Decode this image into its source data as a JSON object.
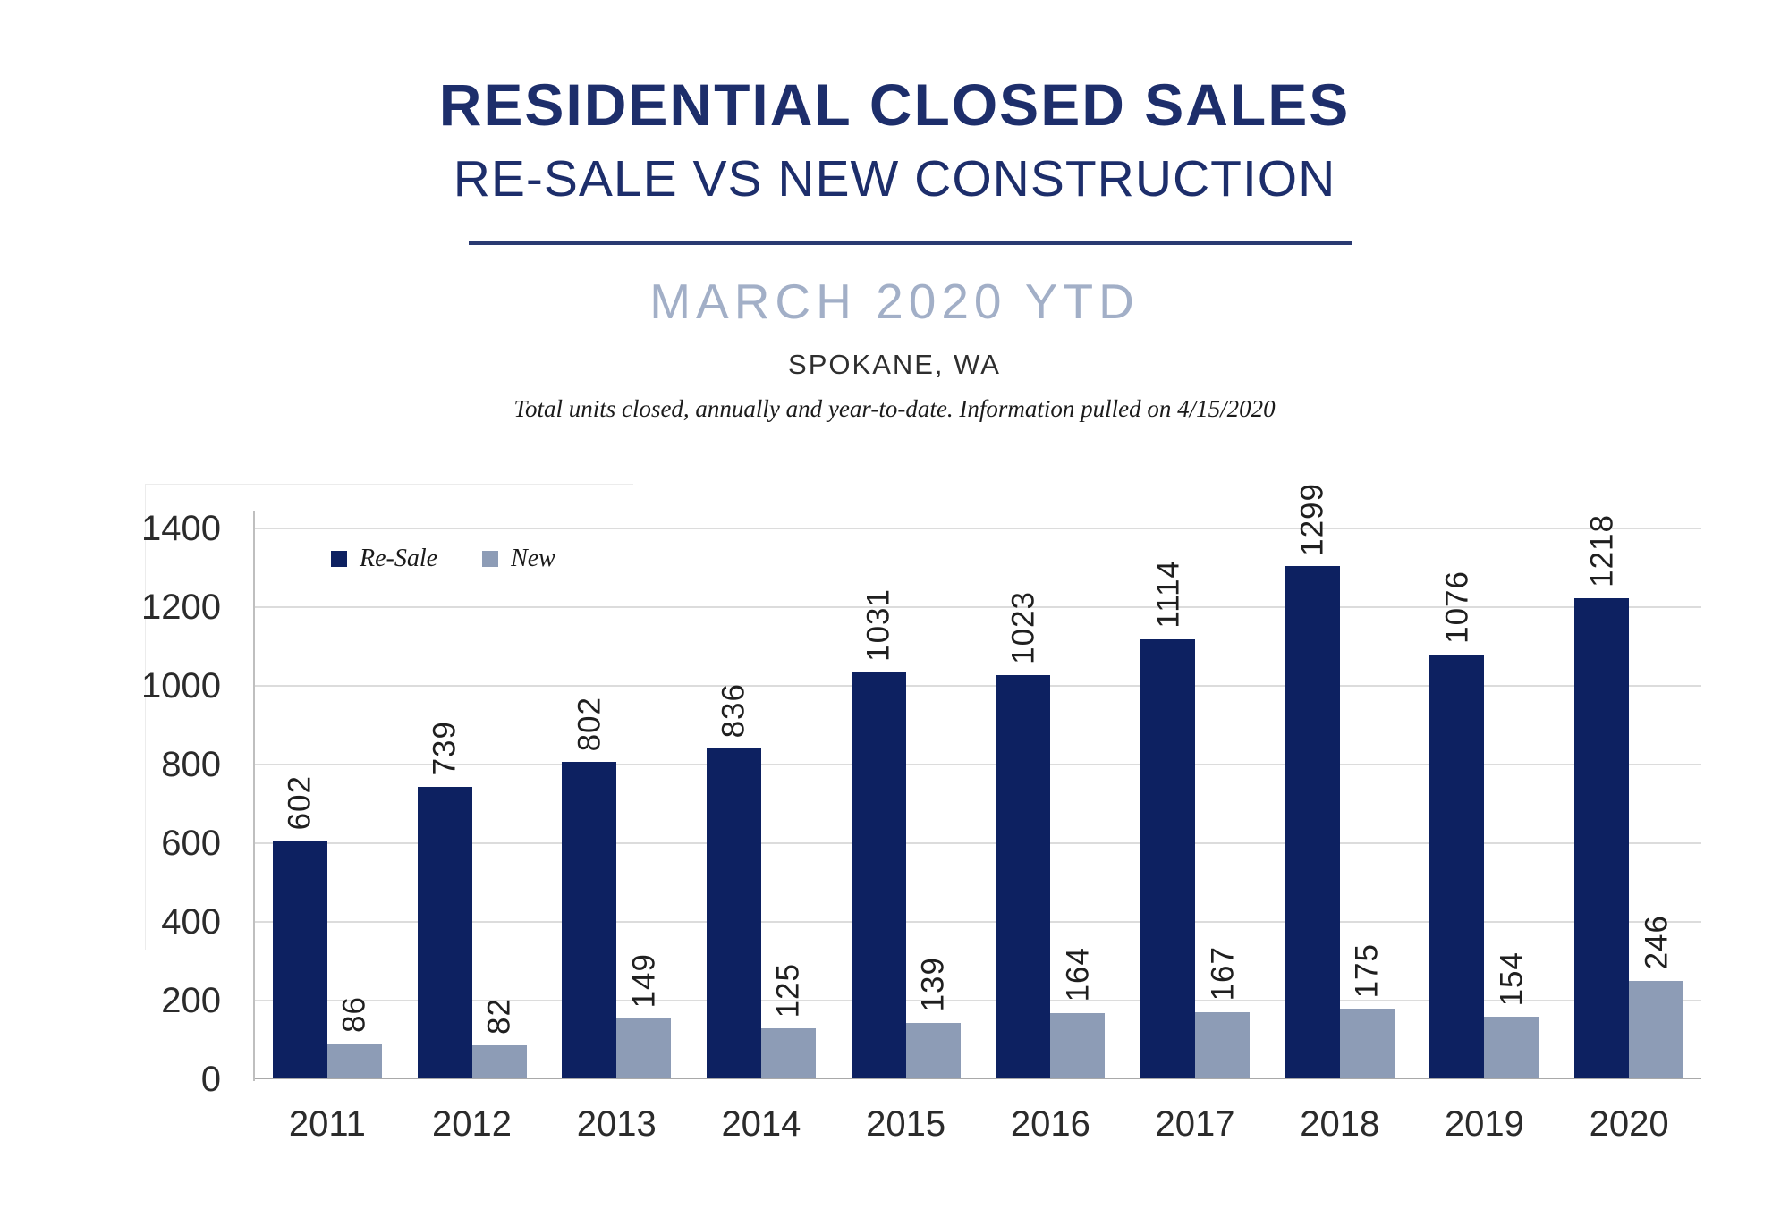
{
  "header": {
    "title": "RESIDENTIAL CLOSED SALES",
    "subtitle": "RE-SALE VS NEW CONSTRUCTION",
    "period": "MARCH 2020 YTD",
    "location": "SPOKANE, WA",
    "tagline": "Total units closed, annually and year-to-date.  Information pulled on 4/15/2020"
  },
  "colors": {
    "title_navy": "#1d2e6b",
    "period_blue_gray": "#a2afc7",
    "resale_bar": "#0d2161",
    "new_bar": "#8d9cb6",
    "gridline": "#dcdcdc",
    "axis_line": "#bfbfbf",
    "baseline": "#a9a9a9",
    "label_text": "#1f1f1f"
  },
  "chart_data": {
    "type": "bar",
    "categories": [
      "2011",
      "2012",
      "2013",
      "2014",
      "2015",
      "2016",
      "2017",
      "2018",
      "2019",
      "2020"
    ],
    "series": [
      {
        "name": "Re-Sale",
        "color": "#0d2161",
        "values": [
          602,
          739,
          802,
          836,
          1031,
          1023,
          1114,
          1299,
          1076,
          1218
        ]
      },
      {
        "name": "New",
        "color": "#8d9cb6",
        "values": [
          86,
          82,
          149,
          125,
          139,
          164,
          167,
          175,
          154,
          246
        ]
      }
    ],
    "title": "",
    "xlabel": "",
    "ylabel": "",
    "ylim": [
      0,
      1400
    ],
    "yticks": [
      0,
      200,
      400,
      600,
      800,
      1000,
      1200,
      1400
    ],
    "grid": true,
    "legend_position": "top-left-inside",
    "value_labels": "rotated-90-above-bars"
  }
}
